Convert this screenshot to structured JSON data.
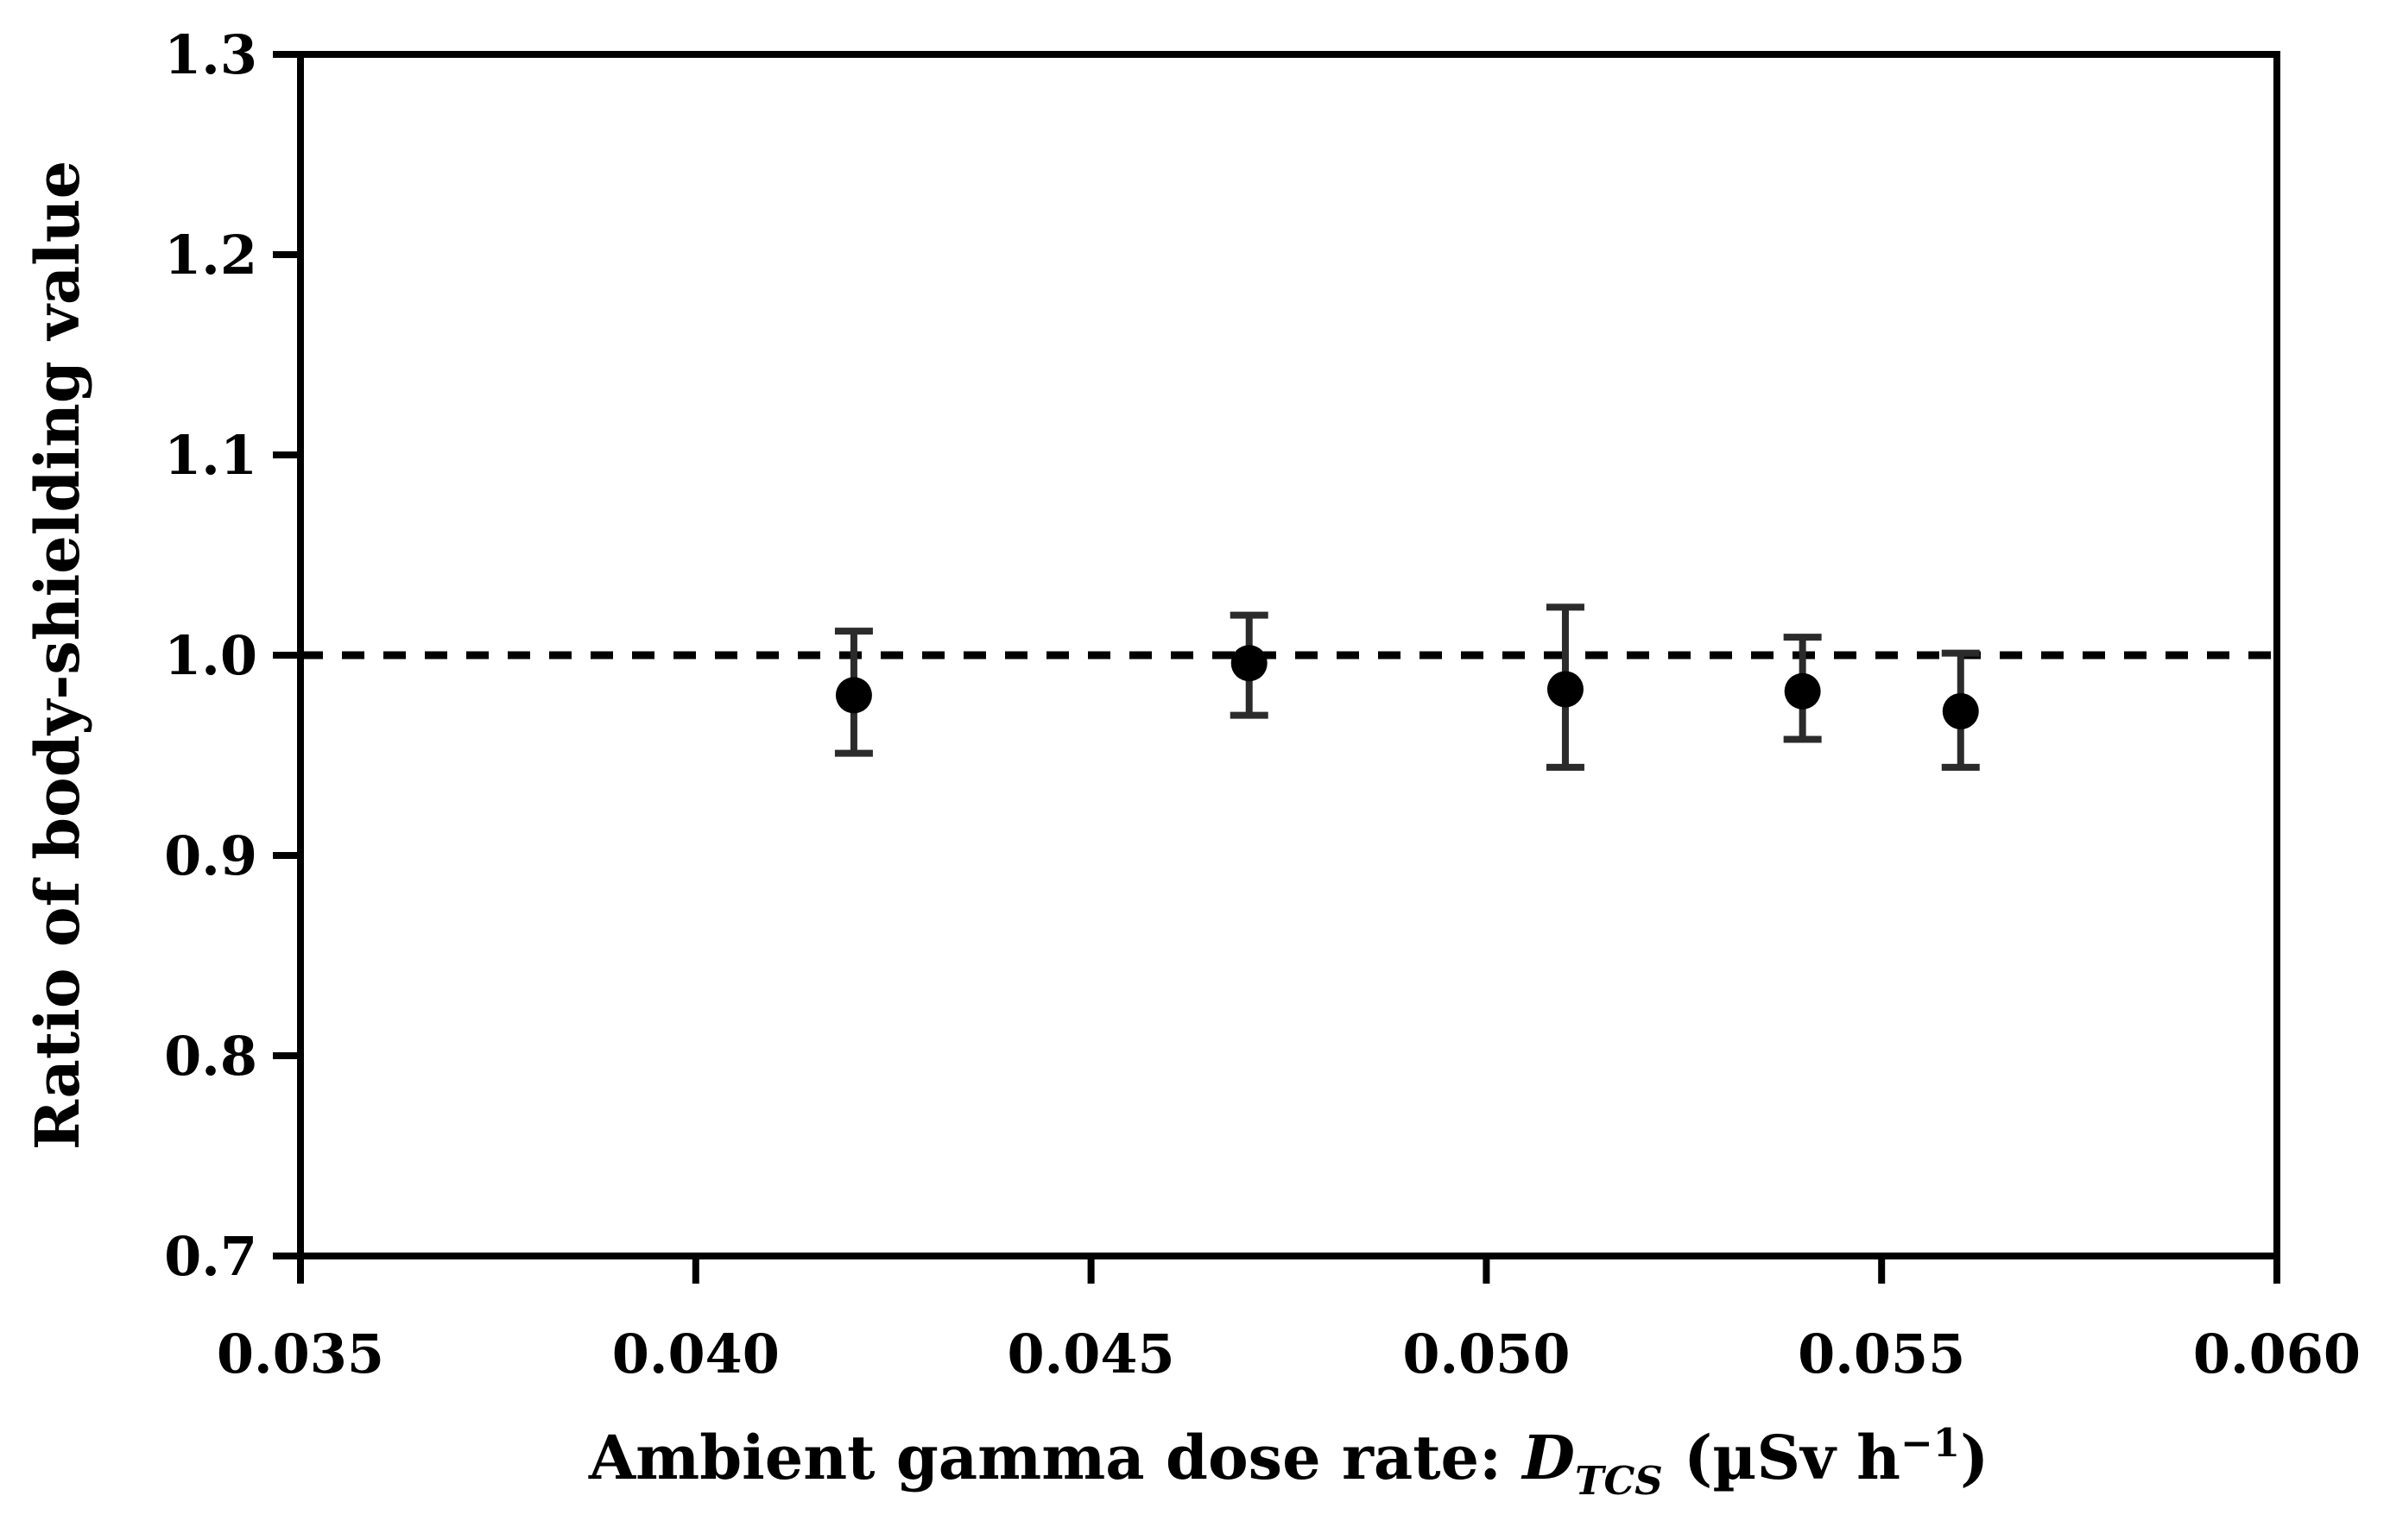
{
  "colors": {
    "foreground": "#000000",
    "background": "#ffffff",
    "error_bar": "#2b2b2b"
  },
  "y_axis_title": "Ratio of body-shielding value",
  "x_axis_title": {
    "prefix": "Ambient gamma dose rate: ",
    "symbol": "D",
    "subscript": "TCS",
    "unit_open": " (µSv h",
    "exponent": "−1",
    "unit_close": ")"
  },
  "chart_data": {
    "type": "scatter",
    "title": "",
    "xlabel": "Ambient gamma dose rate: D_TCS (µSv h−1)",
    "ylabel": "Ratio of body-shielding value",
    "xlim": [
      0.035,
      0.06
    ],
    "ylim": [
      0.7,
      1.3
    ],
    "x_ticks": [
      "0.035",
      "0.040",
      "0.045",
      "0.050",
      "0.055",
      "0.060"
    ],
    "x_tick_values": [
      0.035,
      0.04,
      0.045,
      0.05,
      0.055,
      0.06
    ],
    "y_ticks": [
      "0.7",
      "0.8",
      "0.9",
      "1.0",
      "1.1",
      "1.2",
      "1.3"
    ],
    "y_tick_values": [
      0.7,
      0.8,
      0.9,
      1.0,
      1.1,
      1.2,
      1.3
    ],
    "grid": false,
    "legend": false,
    "reference_line": {
      "y": 1.0,
      "style": "dashed",
      "color": "#000000"
    },
    "series": [
      {
        "marker": "filled-circle",
        "color": "#000000",
        "error_bar_color": "#2b2b2b",
        "points": [
          {
            "x": 0.042,
            "y": 0.98,
            "y_upper": 1.012,
            "y_lower": 0.951
          },
          {
            "x": 0.047,
            "y": 0.996,
            "y_upper": 1.02,
            "y_lower": 0.97
          },
          {
            "x": 0.051,
            "y": 0.983,
            "y_upper": 1.024,
            "y_lower": 0.944
          },
          {
            "x": 0.054,
            "y": 0.982,
            "y_upper": 1.009,
            "y_lower": 0.958
          },
          {
            "x": 0.056,
            "y": 0.972,
            "y_upper": 1.001,
            "y_lower": 0.944
          }
        ]
      }
    ]
  }
}
